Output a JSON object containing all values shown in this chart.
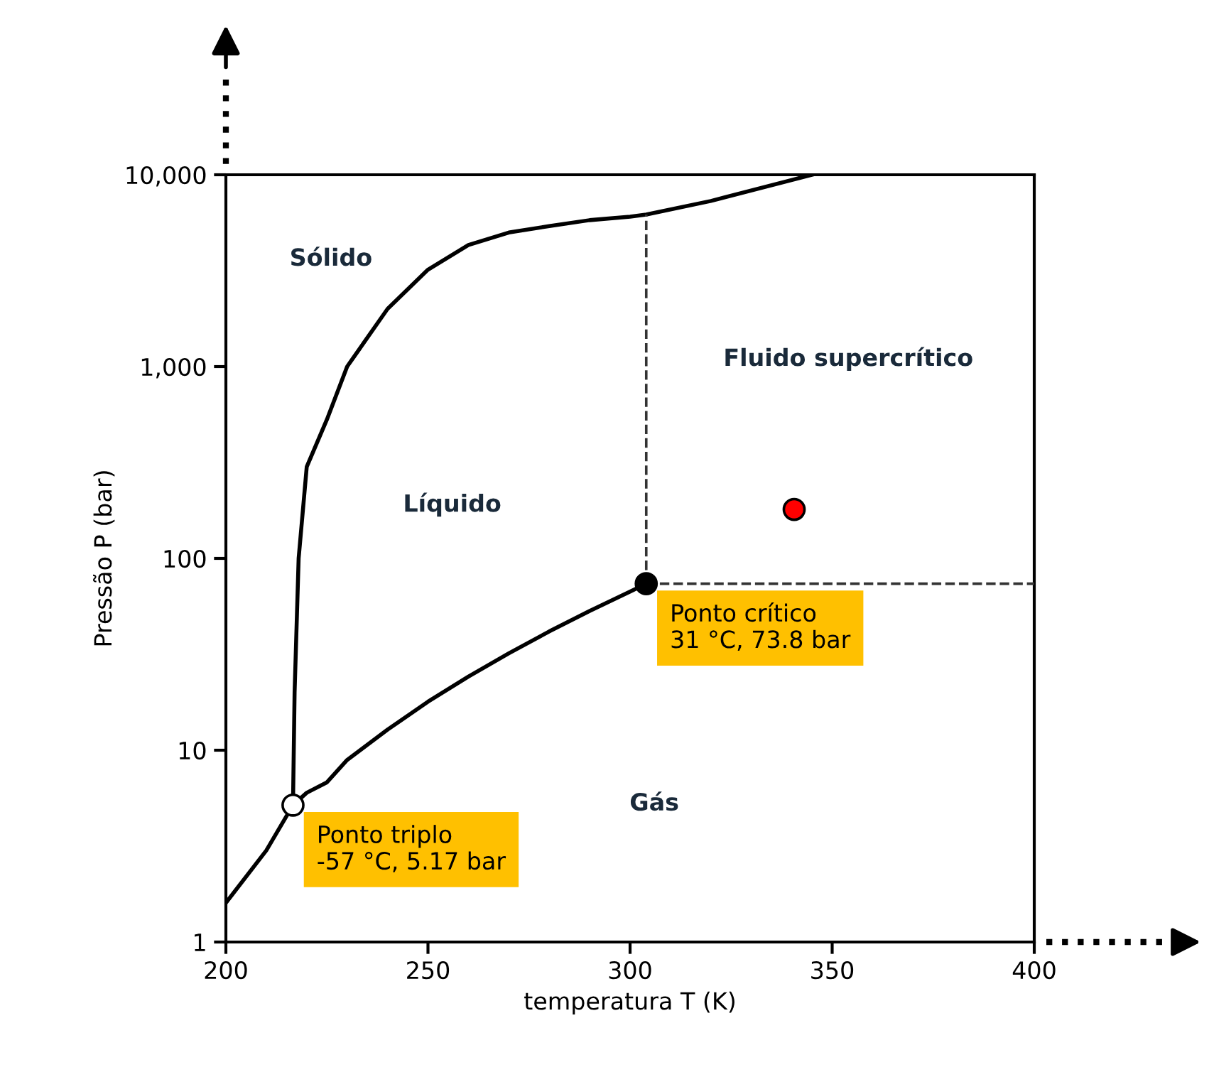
{
  "chart_data": {
    "type": "line",
    "xlabel": "temperatura T (K)",
    "ylabel": "Pressão P (bar)",
    "log": "y",
    "xlim": [
      200,
      400
    ],
    "ylim": [
      1,
      10000
    ],
    "xticks": [
      200,
      250,
      300,
      350,
      400
    ],
    "yticks": [
      1,
      10,
      100,
      {
        "value": 1000,
        "label": "1,000"
      },
      {
        "value": 10000,
        "label": "10,000"
      }
    ],
    "grid": false,
    "legend": false,
    "series": [
      {
        "color": "#000000",
        "line_style": "solid",
        "x": [
          200,
          210,
          216.6
        ],
        "values": [
          1.6,
          3.0,
          5.17
        ]
      },
      {
        "color": "#000000",
        "line_style": "solid",
        "x": [
          216.6,
          218,
          220,
          225,
          230,
          240,
          250,
          260,
          270,
          280,
          290,
          300,
          304
        ],
        "values": [
          5.17,
          5.5,
          6.0,
          6.8,
          8.9,
          12.8,
          17.9,
          24.2,
          32,
          41.6,
          53.2,
          67.1,
          73.8
        ]
      },
      {
        "color": "#000000",
        "line_style": "solid",
        "x": [
          216.6,
          217,
          218,
          220,
          225,
          230,
          240,
          250,
          260,
          270,
          280,
          290,
          300,
          304,
          320,
          345
        ],
        "values": [
          5.17,
          20,
          100,
          300,
          530,
          1000,
          2000,
          3200,
          4300,
          5000,
          5400,
          5800,
          6050,
          6200,
          7300,
          10000
        ]
      },
      {
        "color": "#333333",
        "line_style": "dashed",
        "x": [
          304,
          304
        ],
        "values": [
          73.8,
          6200
        ]
      },
      {
        "color": "#333333",
        "line_style": "dashed",
        "x": [
          304,
          400
        ],
        "values": [
          73.8,
          73.8
        ]
      },
      {
        "type": "scatter",
        "marker": "circle",
        "x": [
          216.6,
          304,
          340.6
        ],
        "values": [
          5.17,
          73.8,
          180
        ],
        "colors": [
          "#ffffff",
          "#000000",
          "#ff0000"
        ],
        "value_labels": [
          "Ponto triplo\n-57 °C, 5.17 bar",
          "Ponto crítico\n31 °C, 73.8 bar",
          null
        ]
      }
    ],
    "annotations": [
      "Sólido",
      "Líquido",
      "Fluido supercrítico",
      "Gás"
    ]
  }
}
